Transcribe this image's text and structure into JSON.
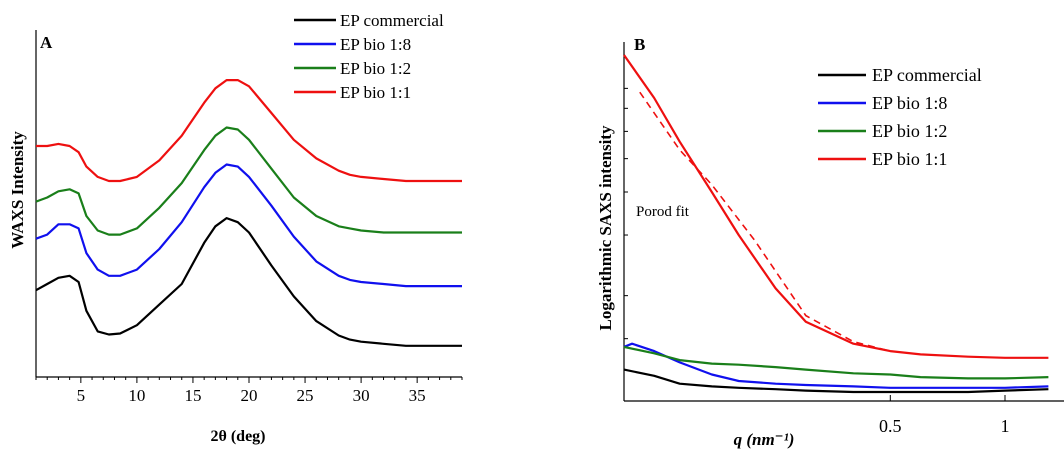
{
  "colors": {
    "black": "#000000",
    "blue": "#1010ee",
    "green": "#1a7f1a",
    "red": "#ee1010"
  },
  "chart_data": [
    {
      "type": "line",
      "panel_label": "A",
      "xlabel": "2θ (deg)",
      "ylabel": "WAXS Intensity",
      "xlim": [
        1,
        39
      ],
      "xticks": [
        5,
        10,
        15,
        20,
        25,
        30,
        35
      ],
      "y_tick_labels": "none",
      "legend": "top-right",
      "legend_entries": [
        "EP commercial",
        "EP bio 1:8",
        "EP bio 1:2",
        "EP bio 1:1"
      ],
      "series": [
        {
          "name": "EP commercial",
          "color": "#000000",
          "x": [
            1,
            2,
            3,
            4,
            4.8,
            5.5,
            6.5,
            7.5,
            8.5,
            10,
            12,
            14,
            16,
            17,
            18,
            19,
            20,
            22,
            24,
            26,
            28,
            29,
            30,
            32,
            34,
            36,
            39
          ],
          "y": [
            0.3,
            0.33,
            0.36,
            0.37,
            0.34,
            0.2,
            0.1,
            0.085,
            0.09,
            0.13,
            0.23,
            0.33,
            0.53,
            0.61,
            0.65,
            0.63,
            0.58,
            0.42,
            0.27,
            0.15,
            0.08,
            0.06,
            0.05,
            0.04,
            0.03,
            0.03,
            0.03
          ]
        },
        {
          "name": "EP bio 1:8",
          "color": "#1010ee",
          "x": [
            1,
            2,
            3,
            4,
            4.8,
            5.5,
            6.5,
            7.5,
            8.5,
            10,
            12,
            14,
            16,
            17,
            18,
            19,
            20,
            22,
            24,
            26,
            28,
            29,
            30,
            32,
            34,
            36,
            39
          ],
          "y": [
            0.55,
            0.57,
            0.62,
            0.62,
            0.6,
            0.48,
            0.4,
            0.37,
            0.37,
            0.4,
            0.5,
            0.63,
            0.8,
            0.87,
            0.91,
            0.9,
            0.85,
            0.71,
            0.56,
            0.44,
            0.37,
            0.35,
            0.34,
            0.33,
            0.32,
            0.32,
            0.32
          ]
        },
        {
          "name": "EP bio 1:2",
          "color": "#1a7f1a",
          "x": [
            1,
            2,
            3,
            4,
            4.8,
            5.5,
            6.5,
            7.5,
            8.5,
            10,
            12,
            14,
            16,
            17,
            18,
            19,
            20,
            22,
            24,
            26,
            28,
            29,
            30,
            32,
            34,
            36,
            39
          ],
          "y": [
            0.73,
            0.75,
            0.78,
            0.79,
            0.77,
            0.66,
            0.59,
            0.57,
            0.57,
            0.6,
            0.7,
            0.82,
            0.98,
            1.05,
            1.09,
            1.08,
            1.03,
            0.89,
            0.75,
            0.66,
            0.61,
            0.6,
            0.59,
            0.58,
            0.58,
            0.58,
            0.58
          ]
        },
        {
          "name": "EP bio 1:1",
          "color": "#ee1010",
          "x": [
            1,
            2,
            3,
            4,
            4.8,
            5.5,
            6.5,
            7.5,
            8.5,
            10,
            12,
            14,
            16,
            17,
            18,
            19,
            20,
            22,
            24,
            26,
            28,
            29,
            30,
            32,
            34,
            36,
            39
          ],
          "y": [
            1.0,
            1.0,
            1.01,
            1.0,
            0.97,
            0.9,
            0.85,
            0.83,
            0.83,
            0.85,
            0.93,
            1.05,
            1.21,
            1.28,
            1.32,
            1.32,
            1.29,
            1.16,
            1.03,
            0.94,
            0.88,
            0.86,
            0.85,
            0.84,
            0.83,
            0.83,
            0.83
          ]
        }
      ]
    },
    {
      "type": "line",
      "panel_label": "B",
      "xlabel": "q (nm⁻¹)",
      "ylabel": "Logarithmic SAXS intensity",
      "x_scale": "log",
      "y_scale": "log",
      "xlim": [
        0.1,
        1.3
      ],
      "xticks": [
        0.5,
        1
      ],
      "y_tick_labels": "none",
      "legend": "top-right",
      "legend_entries": [
        "EP commercial",
        "EP bio 1:8",
        "EP bio 1:2",
        "EP bio 1:1"
      ],
      "annotation": "Porod fit",
      "series": [
        {
          "name": "EP commercial",
          "color": "#000000",
          "x": [
            0.1,
            0.12,
            0.14,
            0.17,
            0.2,
            0.25,
            0.3,
            0.4,
            0.5,
            0.6,
            0.8,
            1.0,
            1.3
          ],
          "y": [
            1.22,
            1.17,
            1.11,
            1.09,
            1.08,
            1.07,
            1.06,
            1.05,
            1.05,
            1.05,
            1.05,
            1.06,
            1.07
          ]
        },
        {
          "name": "EP bio 1:8",
          "color": "#1010ee",
          "x": [
            0.1,
            0.105,
            0.12,
            0.14,
            0.17,
            0.2,
            0.25,
            0.3,
            0.4,
            0.5,
            0.6,
            0.8,
            1.0,
            1.3
          ],
          "y": [
            1.42,
            1.45,
            1.38,
            1.28,
            1.18,
            1.13,
            1.11,
            1.1,
            1.09,
            1.08,
            1.08,
            1.08,
            1.08,
            1.09
          ]
        },
        {
          "name": "EP bio 1:2",
          "color": "#1a7f1a",
          "x": [
            0.1,
            0.12,
            0.14,
            0.17,
            0.2,
            0.25,
            0.3,
            0.4,
            0.5,
            0.6,
            0.8,
            1.0,
            1.3
          ],
          "y": [
            1.42,
            1.36,
            1.3,
            1.27,
            1.26,
            1.24,
            1.22,
            1.19,
            1.18,
            1.16,
            1.15,
            1.15,
            1.16
          ]
        },
        {
          "name": "EP bio 1:1",
          "color": "#ee1010",
          "x": [
            0.1,
            0.12,
            0.14,
            0.17,
            0.2,
            0.25,
            0.3,
            0.4,
            0.5,
            0.6,
            0.8,
            1.0,
            1.3
          ],
          "y": [
            10.0,
            7.5,
            5.6,
            4.0,
            3.0,
            2.1,
            1.68,
            1.45,
            1.38,
            1.35,
            1.33,
            1.32,
            1.32
          ]
        }
      ],
      "porod_fit": {
        "color": "#ee1010",
        "style": "dashed",
        "x": [
          0.11,
          0.14,
          0.17,
          0.22,
          0.3,
          0.4,
          0.5
        ],
        "y": [
          7.8,
          5.3,
          4.2,
          2.9,
          1.75,
          1.47,
          1.38
        ]
      }
    }
  ]
}
